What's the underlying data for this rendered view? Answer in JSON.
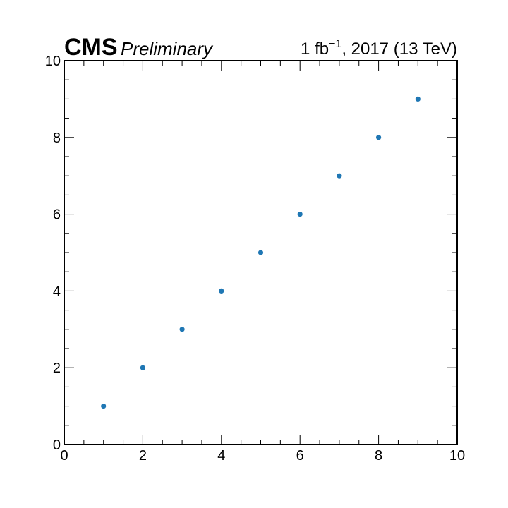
{
  "header": {
    "experiment": "CMS",
    "status": "Preliminary",
    "lumi_value": "1 fb",
    "lumi_exponent": "−1",
    "lumi_rest": ", 2017 (13 TeV)"
  },
  "chart_data": {
    "type": "scatter",
    "x": [
      1,
      2,
      3,
      4,
      5,
      6,
      7,
      8,
      9
    ],
    "y": [
      1,
      2,
      3,
      4,
      5,
      6,
      7,
      8,
      9
    ],
    "xlim": [
      0,
      10
    ],
    "ylim": [
      0,
      10
    ],
    "x_ticks": [
      "0",
      "2",
      "4",
      "6",
      "8",
      "10"
    ],
    "y_ticks": [
      "0",
      "2",
      "4",
      "6",
      "8",
      "10"
    ],
    "xlabel": "",
    "ylabel": "",
    "grid": false,
    "marker_color": "#1f77b4"
  }
}
